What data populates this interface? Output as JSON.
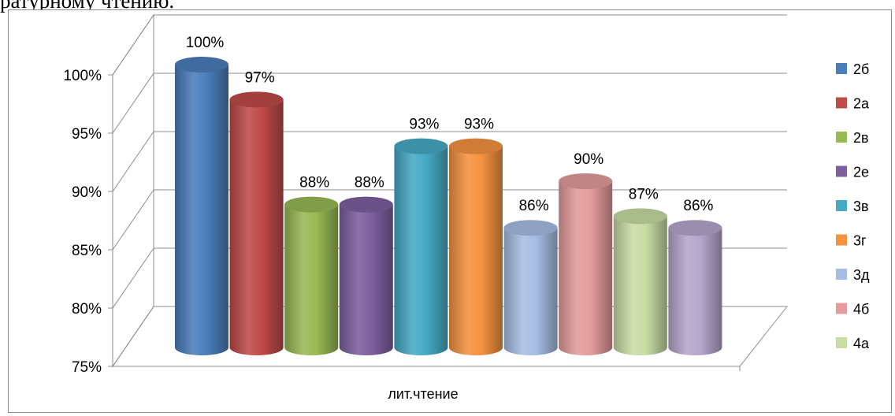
{
  "header_text": "ратурному чтению.",
  "chart_data": {
    "type": "bar",
    "style": "3d-cylinder",
    "categories": [
      "лит.чтение"
    ],
    "series": [
      {
        "name": "2б",
        "values": [
          100
        ],
        "label": "100%",
        "color": "#4a7ebb"
      },
      {
        "name": "2а",
        "values": [
          97
        ],
        "label": "97%",
        "color": "#be4b48"
      },
      {
        "name": "2в",
        "values": [
          88
        ],
        "label": "88%",
        "color": "#98b954"
      },
      {
        "name": "2е",
        "values": [
          88
        ],
        "label": "88%",
        "color": "#7d5fa0"
      },
      {
        "name": "3в",
        "values": [
          93
        ],
        "label": "93%",
        "color": "#46aac5"
      },
      {
        "name": "3г",
        "values": [
          93
        ],
        "label": "93%",
        "color": "#f69240"
      },
      {
        "name": "3д",
        "values": [
          86
        ],
        "label": "86%",
        "color": "#a7bde4"
      },
      {
        "name": "4б",
        "values": [
          90
        ],
        "label": "90%",
        "color": "#e49c9c"
      },
      {
        "name": "4а",
        "values": [
          87
        ],
        "label": "87%",
        "color": "#c8dca4"
      },
      {
        "name": "",
        "values": [
          86
        ],
        "label": "86%",
        "color": "#b6a6cc"
      }
    ],
    "ylim": [
      75,
      100
    ],
    "yticks": [
      "75%",
      "80%",
      "85%",
      "90%",
      "95%",
      "100%"
    ],
    "grid": true,
    "legend": "right"
  }
}
